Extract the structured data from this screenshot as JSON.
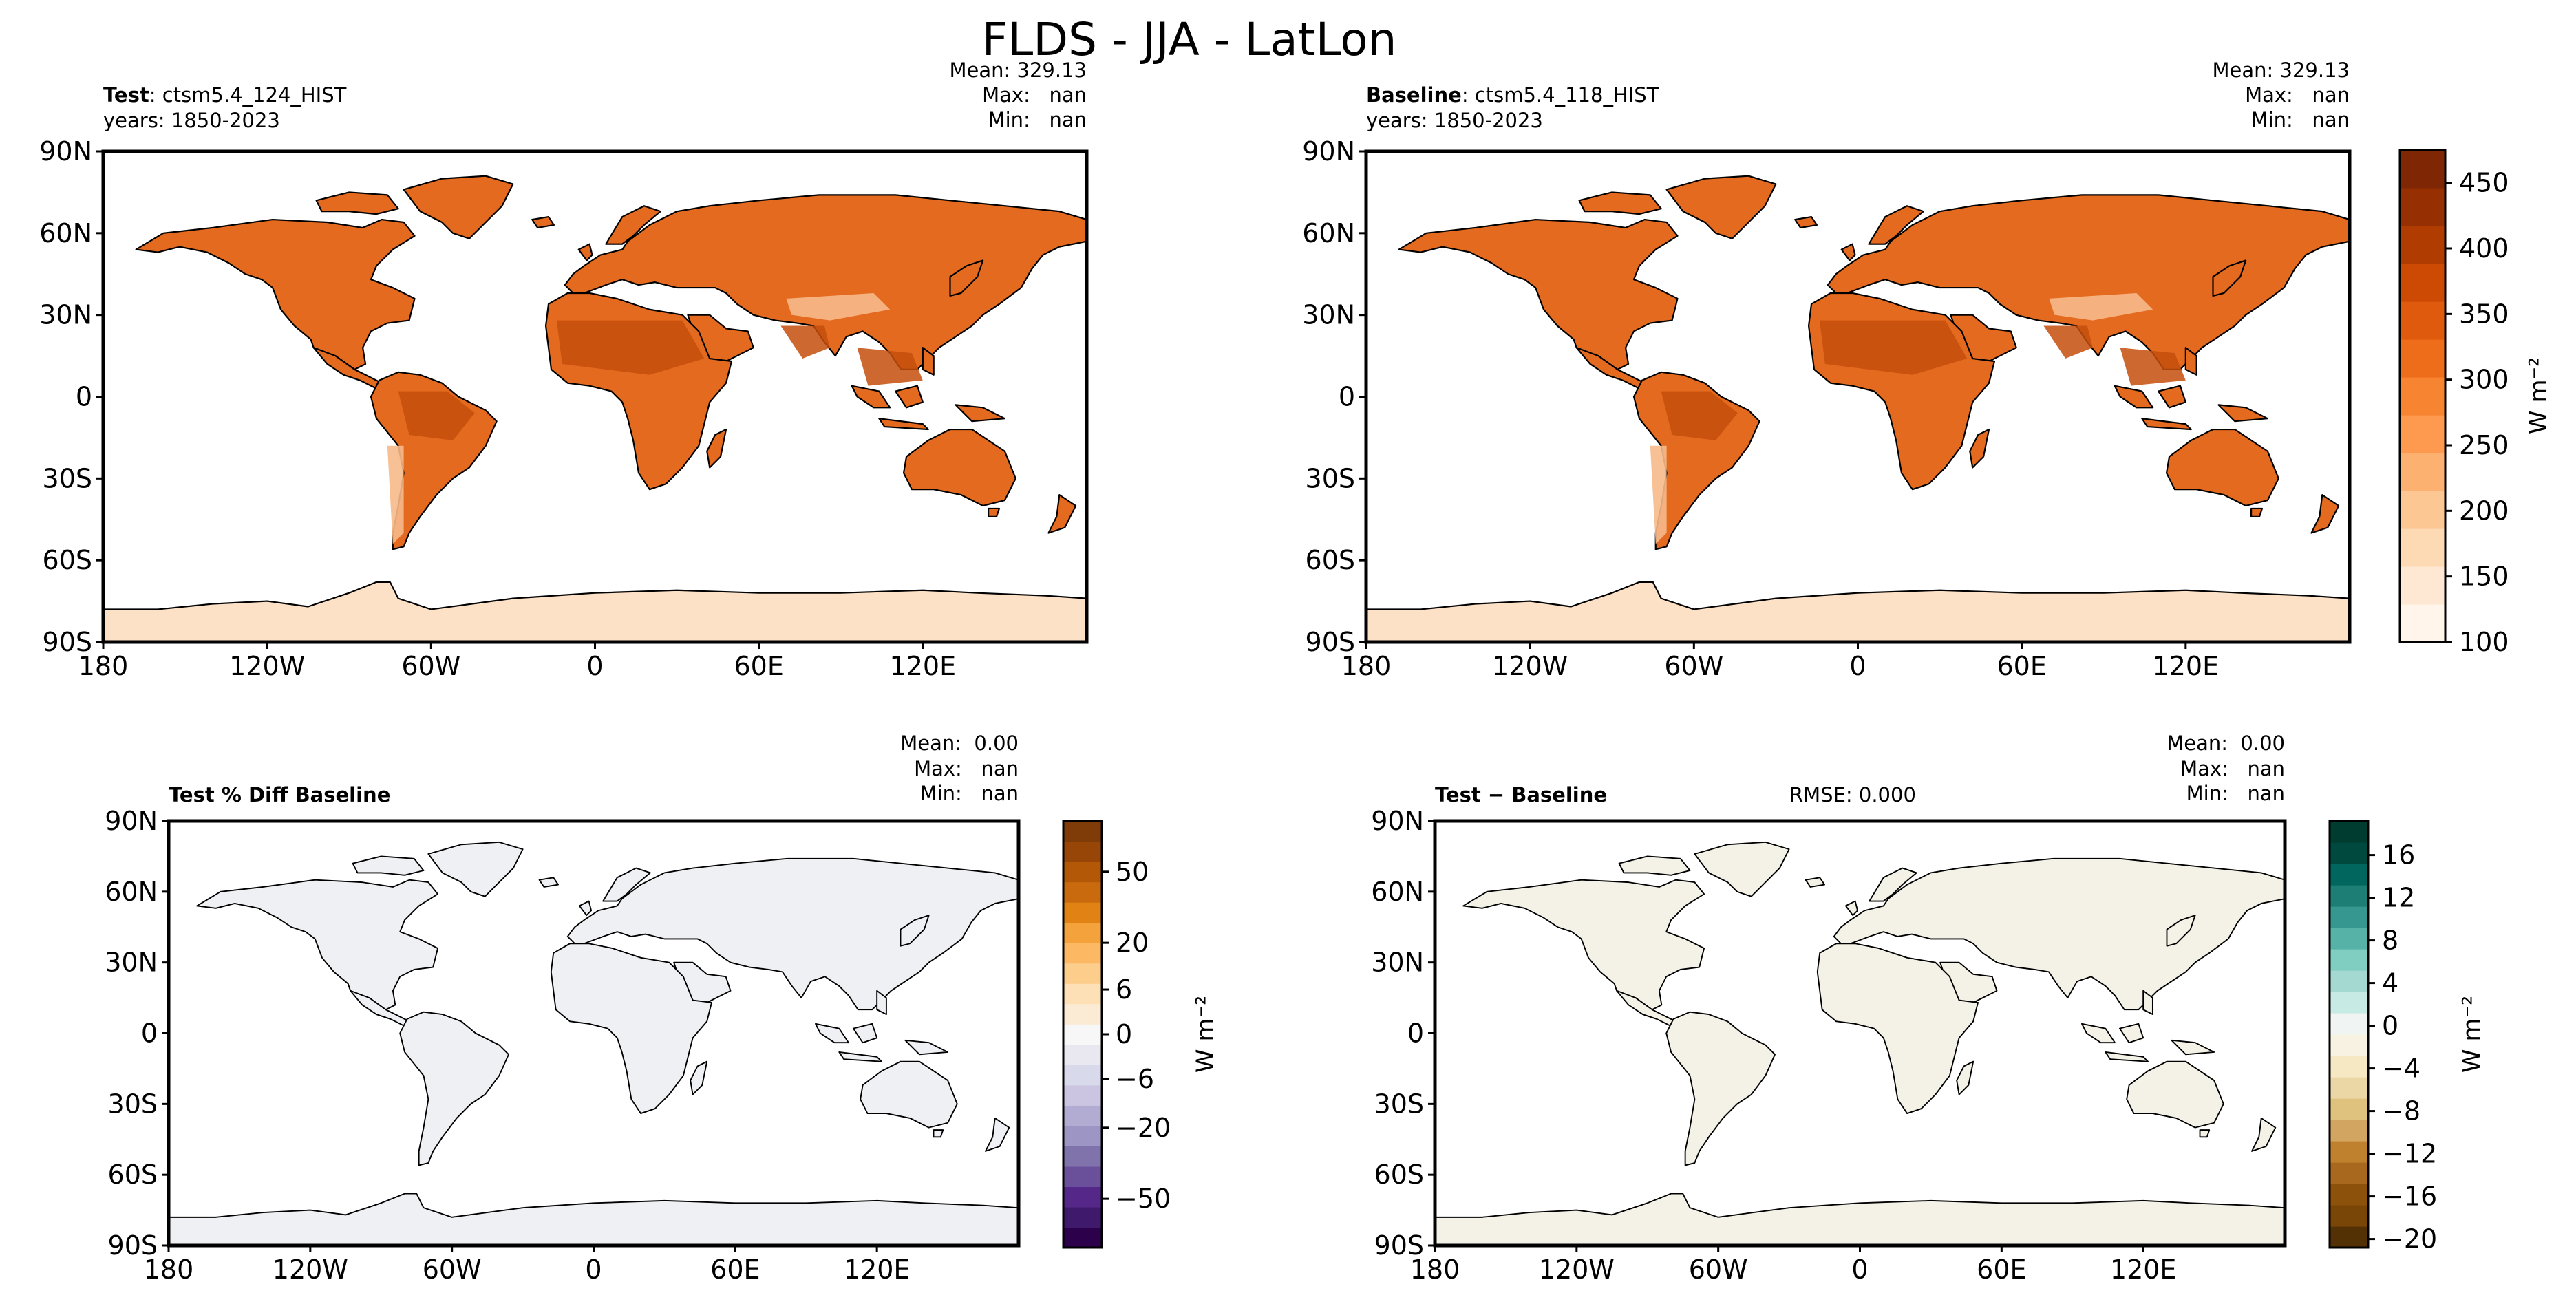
{
  "title": "FLDS - JJA - LatLon",
  "lat_labels": [
    "90N",
    "60N",
    "30N",
    "0",
    "30S",
    "60S",
    "90S"
  ],
  "lon_labels": [
    "180",
    "120W",
    "60W",
    "0",
    "60E",
    "120E"
  ],
  "colors": {
    "land_test": "#e46a1f",
    "land_test_dark": "#c44d0c",
    "ant": "#fde1c6",
    "diff_fill": "#eff0f4",
    "absdiff_fill": "#f4f2e6",
    "coast": "#000000"
  },
  "panels": {
    "test": {
      "header_bold": "Test",
      "header_rest": ": ctsm5.4_124_HIST",
      "years": "years: 1850-2023",
      "stats": {
        "mean": "Mean: 329.13",
        "max": "Max:   nan",
        "min": "Min:   nan"
      }
    },
    "baseline": {
      "header_bold": "Baseline",
      "header_rest": ": ctsm5.4_118_HIST",
      "years": "years: 1850-2023",
      "stats": {
        "mean": "Mean: 329.13",
        "max": "Max:   nan",
        "min": "Min:   nan"
      }
    },
    "pctdiff": {
      "header_bold": "Test % Diff Baseline",
      "stats": {
        "mean": "Mean:  0.00",
        "max": "Max:   nan",
        "min": "Min:   nan"
      }
    },
    "absdiff": {
      "header_bold": "Test − Baseline",
      "rmse": "RMSE: 0.000",
      "stats": {
        "mean": "Mean:  0.00",
        "max": "Max:   nan",
        "min": "Min:   nan"
      }
    }
  },
  "colorbars": {
    "top": {
      "unit": "W m⁻²",
      "ticks": [
        "450",
        "400",
        "350",
        "300",
        "250",
        "200",
        "150",
        "100"
      ],
      "tick_values": [
        450,
        400,
        350,
        300,
        250,
        200,
        150,
        100
      ],
      "range": [
        100,
        475
      ],
      "colors": [
        "#fff5eb",
        "#fee8d3",
        "#fdd9b4",
        "#fdc794",
        "#fdb171",
        "#fd9a50",
        "#f78431",
        "#ee6d1b",
        "#e05a0e",
        "#cc4a04",
        "#b13c02",
        "#963002",
        "#7f2704"
      ]
    },
    "pct": {
      "unit": "W m⁻²",
      "ticks": [
        "50",
        "20",
        "6",
        "0",
        "−6",
        "−20",
        "−50"
      ],
      "colors": [
        "#2d004b",
        "#3f1a6c",
        "#542788",
        "#6a4f9b",
        "#8073ac",
        "#9d95c3",
        "#b2abd2",
        "#cbc5e1",
        "#d8daeb",
        "#e9e8f1",
        "#f7f7f7",
        "#fbebd5",
        "#fee0b6",
        "#fdcd8c",
        "#fdb863",
        "#f4a23c",
        "#e08214",
        "#c86a0d",
        "#b35806",
        "#984607",
        "#7f3b08"
      ]
    },
    "abs": {
      "unit": "W m⁻²",
      "ticks": [
        "16",
        "12",
        "8",
        "4",
        "0",
        "−4",
        "−8",
        "−12",
        "−16",
        "−20"
      ],
      "colors": [
        "#543005",
        "#7a4608",
        "#8c510a",
        "#a8691e",
        "#bf812d",
        "#d2a660",
        "#dfc27d",
        "#ebd7a6",
        "#f6e8c3",
        "#f8f2e2",
        "#f0f5f4",
        "#c7eae5",
        "#a3d9d0",
        "#80cdc1",
        "#56b1a6",
        "#35978f",
        "#1c7e75",
        "#01665e",
        "#00493f",
        "#003c30"
      ]
    }
  }
}
